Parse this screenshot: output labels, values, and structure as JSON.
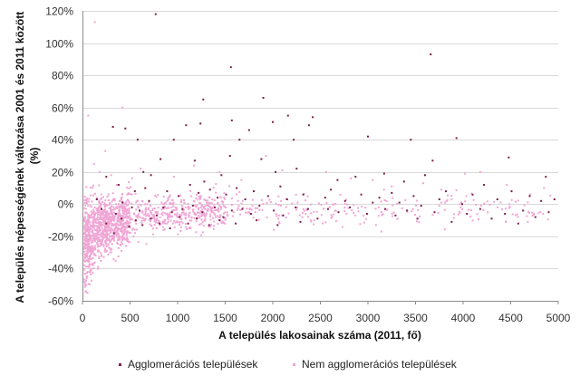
{
  "chart_data": {
    "type": "scatter",
    "xlabel": "A település lakosainak száma (2011, fő)",
    "ylabel_lines": [
      "A település népességének változása 2001 és 2011 között",
      "(%)"
    ],
    "xlim": [
      0,
      5000
    ],
    "ylim": [
      -60,
      120
    ],
    "x_ticks": [
      "0",
      "500",
      "1000",
      "1500",
      "2000",
      "2500",
      "3000",
      "3500",
      "4000",
      "4500",
      "5000"
    ],
    "x_tick_values": [
      0,
      500,
      1000,
      1500,
      2000,
      2500,
      3000,
      3500,
      4000,
      4500,
      5000
    ],
    "y_ticks": [
      "-60%",
      "-40%",
      "-20%",
      "0%",
      "20%",
      "40%",
      "60%",
      "80%",
      "100%",
      "120%"
    ],
    "y_tick_values": [
      -60,
      -40,
      -20,
      0,
      20,
      40,
      60,
      80,
      100,
      120
    ],
    "gridlines": "horizontal",
    "legend_position": "bottom",
    "series": [
      {
        "name": "Agglomerációs települések",
        "color": "#7a1f4d",
        "points": [
          [
            770,
            118
          ],
          [
            1560,
            85
          ],
          [
            3660,
            93
          ],
          [
            1270,
            65
          ],
          [
            1900,
            66
          ],
          [
            1240,
            50
          ],
          [
            580,
            40
          ],
          [
            1570,
            52
          ],
          [
            1750,
            46
          ],
          [
            2000,
            51
          ],
          [
            2160,
            55
          ],
          [
            2420,
            54
          ],
          [
            2380,
            49
          ],
          [
            3450,
            40
          ],
          [
            3000,
            42
          ],
          [
            3930,
            41
          ],
          [
            2220,
            40
          ],
          [
            1090,
            49
          ],
          [
            1650,
            40
          ],
          [
            450,
            47
          ],
          [
            960,
            40
          ],
          [
            320,
            48
          ],
          [
            820,
            28
          ],
          [
            1550,
            30
          ],
          [
            1180,
            27
          ],
          [
            1880,
            28
          ],
          [
            3680,
            27
          ],
          [
            4480,
            29
          ],
          [
            2030,
            20
          ],
          [
            3170,
            19
          ],
          [
            3600,
            18
          ],
          [
            2680,
            15
          ],
          [
            2870,
            17
          ],
          [
            3380,
            14
          ],
          [
            1280,
            14
          ],
          [
            1460,
            18
          ],
          [
            720,
            18
          ],
          [
            640,
            20
          ],
          [
            2250,
            22
          ],
          [
            4870,
            17
          ],
          [
            250,
            17
          ],
          [
            380,
            12
          ],
          [
            550,
            8
          ],
          [
            660,
            10
          ],
          [
            890,
            8
          ],
          [
            1010,
            5
          ],
          [
            1130,
            12
          ],
          [
            1220,
            7
          ],
          [
            1340,
            9
          ],
          [
            1420,
            4
          ],
          [
            1510,
            6
          ],
          [
            1620,
            10
          ],
          [
            1710,
            3
          ],
          [
            1800,
            8
          ],
          [
            1950,
            5
          ],
          [
            2080,
            11
          ],
          [
            2150,
            3
          ],
          [
            2320,
            6
          ],
          [
            2550,
            4
          ],
          [
            2610,
            9
          ],
          [
            2760,
            2
          ],
          [
            2930,
            6
          ],
          [
            3050,
            1
          ],
          [
            3120,
            4
          ],
          [
            3250,
            7
          ],
          [
            3330,
            1
          ],
          [
            3480,
            5
          ],
          [
            3560,
            -1
          ],
          [
            3750,
            3
          ],
          [
            3820,
            8
          ],
          [
            3990,
            0
          ],
          [
            4100,
            6
          ],
          [
            4220,
            12
          ],
          [
            4360,
            3
          ],
          [
            4510,
            8
          ],
          [
            4630,
            -4
          ],
          [
            4700,
            5
          ],
          [
            4820,
            2
          ],
          [
            4960,
            3
          ],
          [
            150,
            3
          ],
          [
            200,
            -3
          ],
          [
            350,
            -6
          ],
          [
            420,
            1
          ],
          [
            520,
            -2
          ],
          [
            600,
            -4
          ],
          [
            700,
            2
          ],
          [
            780,
            -7
          ],
          [
            850,
            -2
          ],
          [
            940,
            -5
          ],
          [
            1050,
            -3
          ],
          [
            1160,
            -1
          ],
          [
            1260,
            -5
          ],
          [
            1390,
            -2
          ],
          [
            1480,
            -8
          ],
          [
            1570,
            -4
          ],
          [
            1680,
            -3
          ],
          [
            1770,
            -6
          ],
          [
            1860,
            -1
          ],
          [
            2010,
            -4
          ],
          [
            2110,
            -7
          ],
          [
            2240,
            -2
          ],
          [
            2370,
            -3
          ],
          [
            2470,
            -9
          ],
          [
            2580,
            -3
          ],
          [
            2690,
            -5
          ],
          [
            2810,
            -2
          ],
          [
            2990,
            -6
          ],
          [
            3180,
            -3
          ],
          [
            3290,
            -7
          ],
          [
            3410,
            -4
          ],
          [
            3520,
            -9
          ],
          [
            3700,
            -5
          ],
          [
            3880,
            -11
          ],
          [
            4040,
            -6
          ],
          [
            4180,
            -3
          ],
          [
            4300,
            -9
          ],
          [
            4440,
            -6
          ],
          [
            4580,
            -12
          ],
          [
            4760,
            -8
          ],
          [
            4900,
            -5
          ],
          [
            250,
            -12
          ],
          [
            330,
            -18
          ],
          [
            410,
            -9
          ],
          [
            490,
            -14
          ],
          [
            560,
            -10
          ],
          [
            630,
            -13
          ],
          [
            720,
            -9
          ],
          [
            810,
            -12
          ],
          [
            920,
            -15
          ],
          [
            1020,
            -8
          ],
          [
            1110,
            -12
          ],
          [
            1200,
            -9
          ],
          [
            1330,
            -13
          ],
          [
            1440,
            -10
          ],
          [
            1610,
            -12
          ],
          [
            1830,
            -10
          ],
          [
            2050,
            -13
          ],
          [
            2290,
            -11
          ]
        ]
      },
      {
        "name": "Nem agglomerációs települések",
        "color": "#f0a6d5",
        "points": [
          [
            130,
            113
          ],
          [
            420,
            60
          ],
          [
            60,
            55
          ],
          [
            240,
            33
          ],
          [
            120,
            25
          ],
          [
            180,
            20
          ],
          [
            300,
            18
          ],
          [
            520,
            16
          ],
          [
            360,
            12
          ],
          [
            610,
            22
          ],
          [
            960,
            17
          ],
          [
            1440,
            20
          ],
          [
            1670,
            15
          ],
          [
            2100,
            21
          ],
          [
            2560,
            20
          ],
          [
            3050,
            15
          ],
          [
            3580,
            13
          ],
          [
            4020,
            19
          ],
          [
            4460,
            12
          ],
          [
            4850,
            10
          ],
          [
            4180,
            20
          ],
          [
            3770,
            9
          ],
          [
            3250,
            11
          ],
          [
            2820,
            16
          ],
          [
            1930,
            30
          ],
          [
            1170,
            24
          ]
        ],
        "generated": {
          "count": 1700
        }
      }
    ]
  }
}
